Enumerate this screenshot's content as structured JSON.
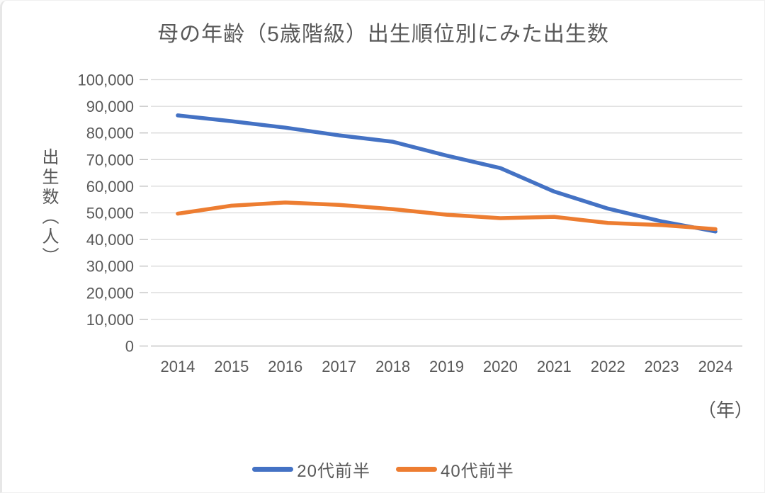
{
  "chart_data": {
    "type": "line",
    "title": "母の年齢（5歳階級）出生順位別にみた出生数",
    "ylabel": "出生数（人）",
    "xlabel_unit": "（年）",
    "categories": [
      "2014",
      "2015",
      "2016",
      "2017",
      "2018",
      "2019",
      "2020",
      "2021",
      "2022",
      "2023",
      "2024"
    ],
    "series": [
      {
        "name": "20代前半",
        "slug": "early-20s",
        "color": "#4472C4",
        "values": [
          86600,
          84400,
          82000,
          79100,
          76700,
          71500,
          66800,
          58000,
          51600,
          46800,
          43000
        ]
      },
      {
        "name": "40代前半",
        "slug": "early-40s",
        "color": "#ED7D31",
        "values": [
          49700,
          52700,
          53900,
          53000,
          51400,
          49300,
          48000,
          48500,
          46200,
          45400,
          43900
        ]
      }
    ],
    "ylim": [
      0,
      100000
    ],
    "y_tick_step": 10000,
    "y_tick_labels": [
      "100,000",
      "90,000",
      "80,000",
      "70,000",
      "60,000",
      "50,000",
      "40,000",
      "30,000",
      "20,000",
      "10,000",
      "0"
    ],
    "grid": "horizontal",
    "legend_position": "bottom"
  },
  "colors": {
    "grid": "#D9D9D9",
    "axis_line": "#C6C6C6",
    "tick": "#BFBFBF",
    "text": "#595959",
    "background": "#FFFFFF"
  }
}
